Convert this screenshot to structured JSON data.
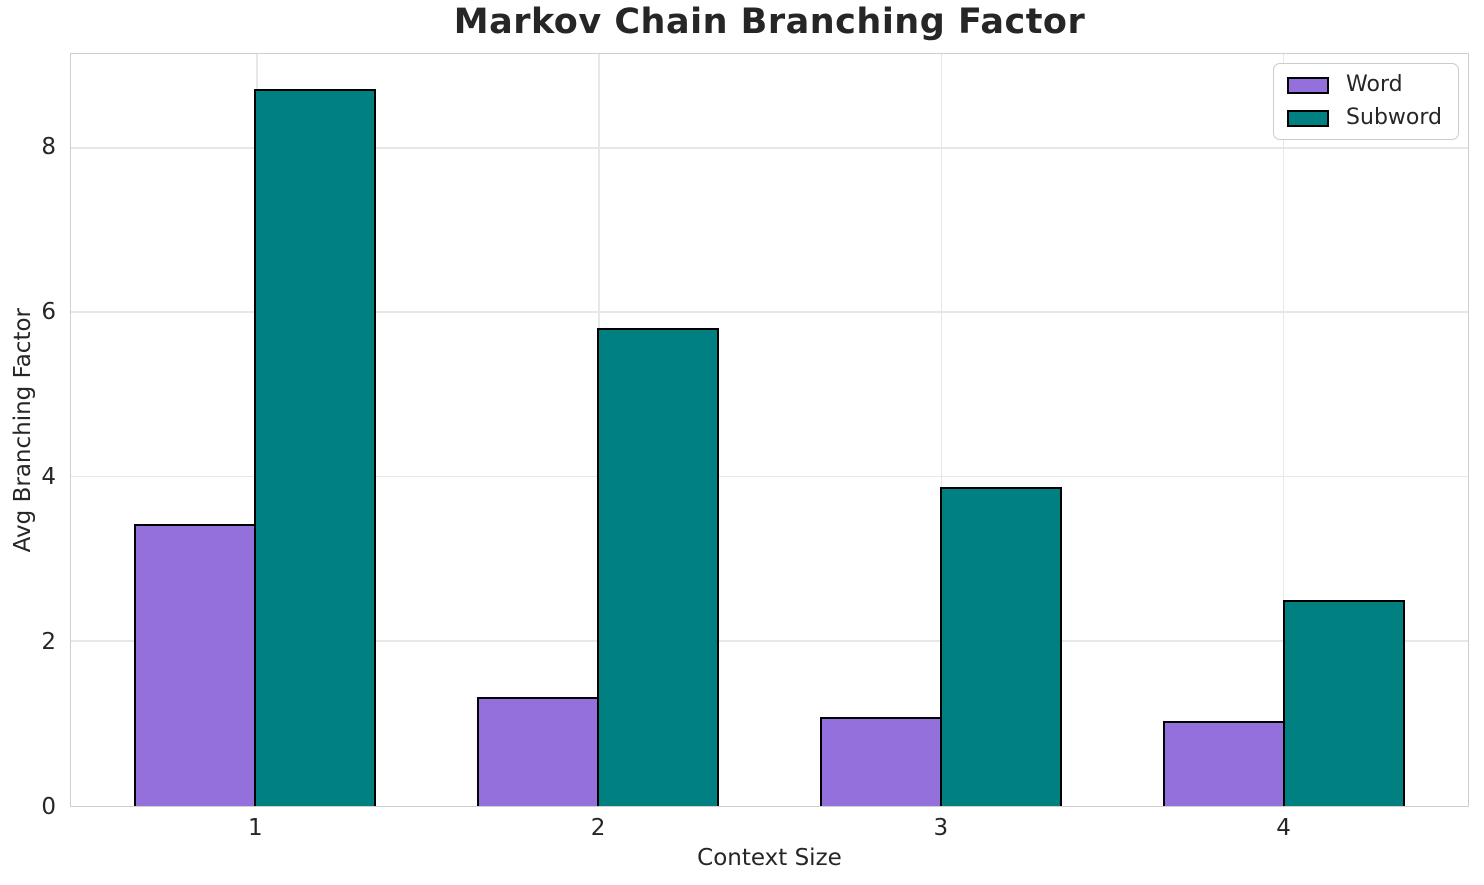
{
  "chart_data": {
    "type": "bar",
    "title": "Markov Chain Branching Factor",
    "xlabel": "Context Size",
    "ylabel": "Avg Branching Factor",
    "categories": [
      "1",
      "2",
      "3",
      "4"
    ],
    "series": [
      {
        "name": "Word",
        "color": "#9370DB",
        "values": [
          3.42,
          1.32,
          1.08,
          1.03
        ]
      },
      {
        "name": "Subword",
        "color": "#008080",
        "values": [
          8.7,
          5.8,
          3.87,
          2.5
        ]
      }
    ],
    "ylim": [
      0,
      9.15
    ],
    "yticks": [
      0,
      2,
      4,
      6,
      8
    ],
    "grid": "both",
    "legend_position": "upper right",
    "bar_edge_color": "#000000"
  },
  "style_colors": {
    "grid": "#e7e7e7",
    "spine": "#cfcfcf",
    "text": "#262626",
    "background": "#ffffff"
  }
}
